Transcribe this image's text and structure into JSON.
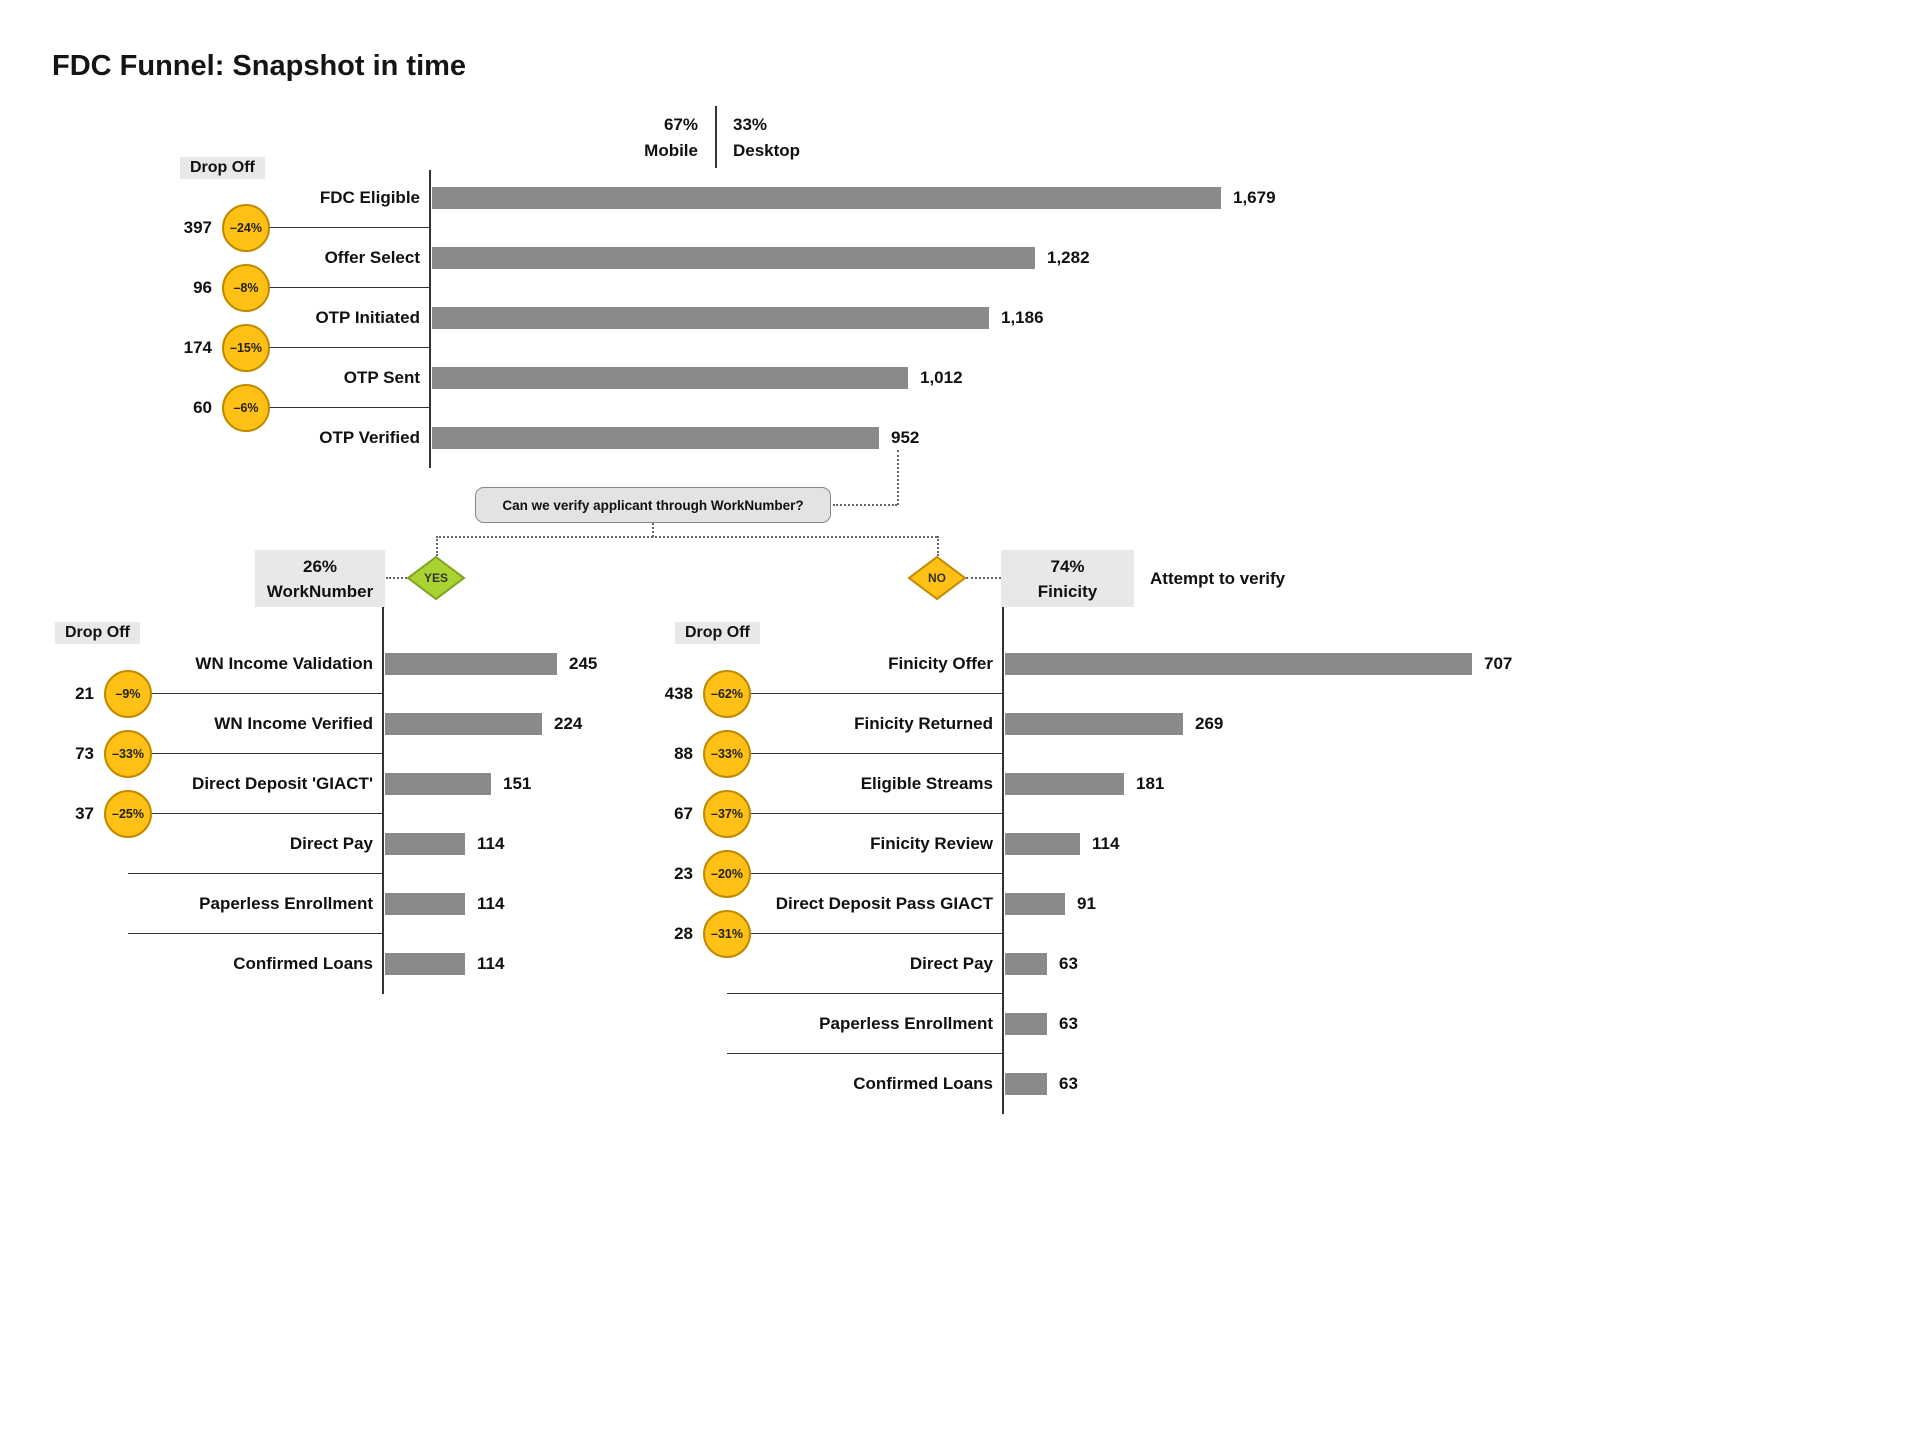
{
  "chart_data": {
    "type": "bar",
    "subtype": "funnel-decision-flow",
    "bar_orientation": "horizontal",
    "title": "FDC Funnel: Snapshot in time",
    "device_split": {
      "left_percent": "67%",
      "left_label": "Mobile",
      "right_percent": "33%",
      "right_label": "Desktop"
    },
    "decision": {
      "question": "Can we verify applicant through WorkNumber?",
      "yes_label": "YES",
      "no_label": "NO"
    },
    "funnels": {
      "main": {
        "drop_off_header": "Drop Off",
        "stages": [
          {
            "label": "FDC Eligible",
            "value": 1679,
            "display": "1,679"
          },
          {
            "label": "Offer Select",
            "value": 1282,
            "display": "1,282"
          },
          {
            "label": "OTP Initiated",
            "value": 1186,
            "display": "1,186"
          },
          {
            "label": "OTP Sent",
            "value": 1012,
            "display": "1,012"
          },
          {
            "label": "OTP Verified",
            "value": 952,
            "display": "952"
          }
        ],
        "drop_offs": [
          {
            "count": "397",
            "percent": "–24%"
          },
          {
            "count": "96",
            "percent": "–8%"
          },
          {
            "count": "174",
            "percent": "–15%"
          },
          {
            "count": "60",
            "percent": "–6%"
          }
        ]
      },
      "worknumber": {
        "branch_percent": "26%",
        "branch_label": "WorkNumber",
        "drop_off_header": "Drop Off",
        "stages": [
          {
            "label": "WN Income Validation",
            "value": 245,
            "display": "245"
          },
          {
            "label": "WN Income Verified",
            "value": 224,
            "display": "224"
          },
          {
            "label": "Direct Deposit 'GIACT'",
            "value": 151,
            "display": "151"
          },
          {
            "label": "Direct Pay",
            "value": 114,
            "display": "114"
          },
          {
            "label": "Paperless Enrollment",
            "value": 114,
            "display": "114"
          },
          {
            "label": "Confirmed Loans",
            "value": 114,
            "display": "114"
          }
        ],
        "drop_offs": [
          {
            "count": "21",
            "percent": "–9%"
          },
          {
            "count": "73",
            "percent": "–33%"
          },
          {
            "count": "37",
            "percent": "–25%"
          },
          null,
          null
        ]
      },
      "finicity": {
        "branch_percent": "74%",
        "branch_label": "Finicity",
        "side_note": "Attempt to verify",
        "drop_off_header": "Drop Off",
        "stages": [
          {
            "label": "Finicity Offer",
            "value": 707,
            "display": "707"
          },
          {
            "label": "Finicity Returned",
            "value": 269,
            "display": "269"
          },
          {
            "label": "Eligible Streams",
            "value": 181,
            "display": "181"
          },
          {
            "label": "Finicity Review",
            "value": 114,
            "display": "114"
          },
          {
            "label": "Direct Deposit Pass GIACT",
            "value": 91,
            "display": "91"
          },
          {
            "label": "Direct Pay",
            "value": 63,
            "display": "63"
          },
          {
            "label": "Paperless Enrollment",
            "value": 63,
            "display": "63"
          },
          {
            "label": "Confirmed Loans",
            "value": 63,
            "display": "63"
          }
        ],
        "drop_offs": [
          {
            "count": "438",
            "percent": "–62%"
          },
          {
            "count": "88",
            "percent": "–33%"
          },
          {
            "count": "67",
            "percent": "–37%"
          },
          {
            "count": "23",
            "percent": "–20%"
          },
          {
            "count": "28",
            "percent": "–31%"
          },
          null,
          null
        ]
      }
    },
    "colors": {
      "bar": "#8A8A8A",
      "drop_circle": "#FFC115",
      "drop_circle_border": "#C08A00",
      "yes_diamond": "#A9D330",
      "yes_diamond_border": "#7FA21F",
      "no_diamond": "#FFC115",
      "no_diamond_border": "#C08A00",
      "header_box": "#E8E8E8"
    }
  }
}
